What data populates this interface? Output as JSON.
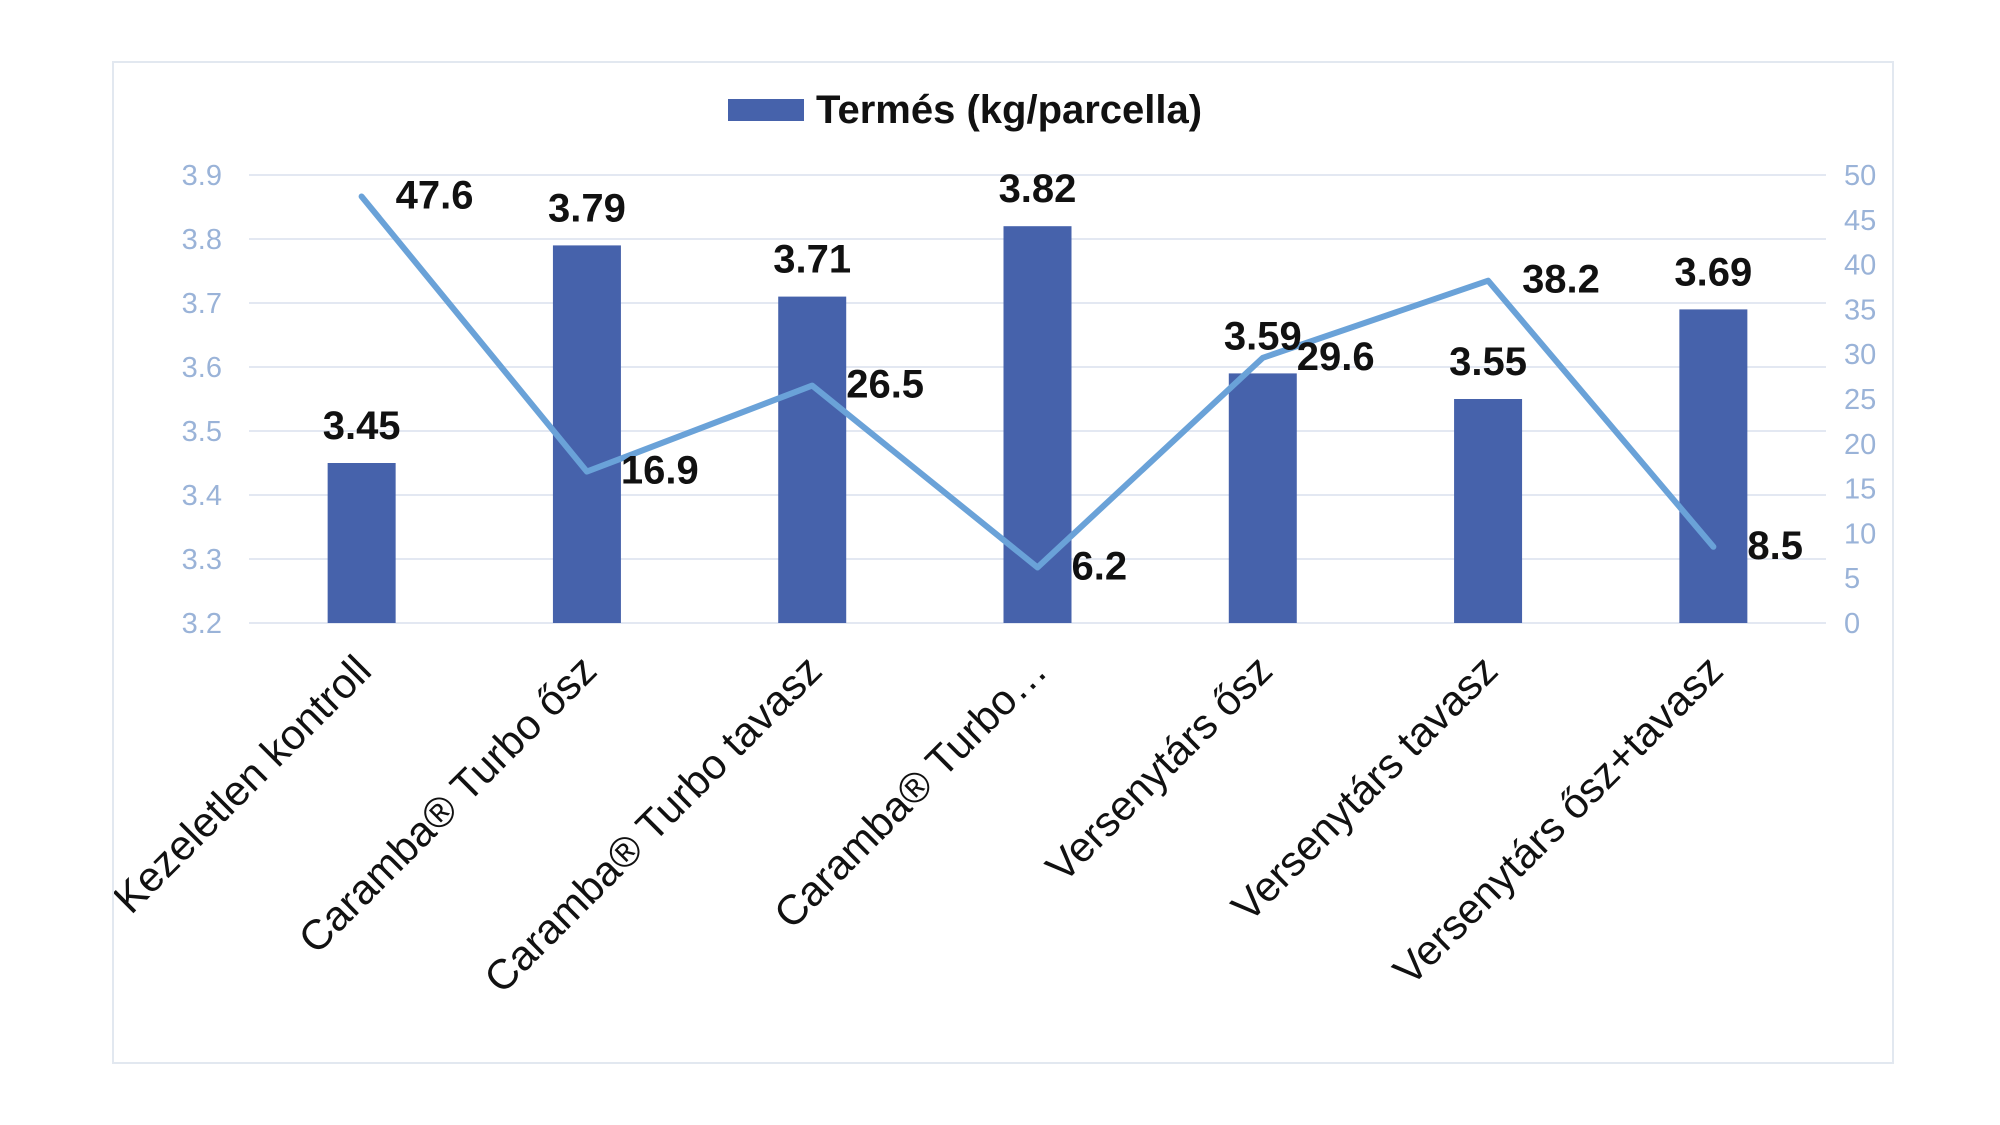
{
  "chart_data": {
    "type": "bar",
    "title": "",
    "legend": {
      "position": "top",
      "entries": [
        "Termés (kg/parcella)"
      ]
    },
    "categories": [
      "Kezeletlen kontroll",
      "Caramba® Turbo ősz",
      "Caramba® Turbo tavasz",
      "Caramba® Turbo…",
      "Versenytárs ősz",
      "Versenytárs tavasz",
      "Versenytárs ősz+tavasz"
    ],
    "series": [
      {
        "name": "Termés (kg/parcella)",
        "type": "bar",
        "axis": "left",
        "color": "#4662ab",
        "values": [
          3.45,
          3.79,
          3.71,
          3.82,
          3.59,
          3.55,
          3.69
        ],
        "labels": [
          "3.45",
          "3.79",
          "3.71",
          "3.82",
          "3.59",
          "3.55",
          "3.69"
        ]
      },
      {
        "type": "line",
        "axis": "right",
        "color": "#6aa2d8",
        "values": [
          47.6,
          16.9,
          26.5,
          6.2,
          29.6,
          38.2,
          8.5
        ],
        "labels": [
          "47.6",
          "16.9",
          "26.5",
          "6.2",
          "29.6",
          "38.2",
          "8.5"
        ]
      }
    ],
    "y_left": {
      "range": [
        3.2,
        3.9
      ],
      "ticks": [
        "3.2",
        "3.3",
        "3.4",
        "3.5",
        "3.6",
        "3.7",
        "3.8",
        "3.9"
      ],
      "color": "#9ab3d8"
    },
    "y_right": {
      "range": [
        0,
        50
      ],
      "ticks": [
        "0",
        "5",
        "10",
        "15",
        "20",
        "25",
        "30",
        "35",
        "40",
        "45",
        "50"
      ],
      "color": "#9ab3d8"
    },
    "grid": true,
    "grid_color": "#e3e8f2"
  }
}
